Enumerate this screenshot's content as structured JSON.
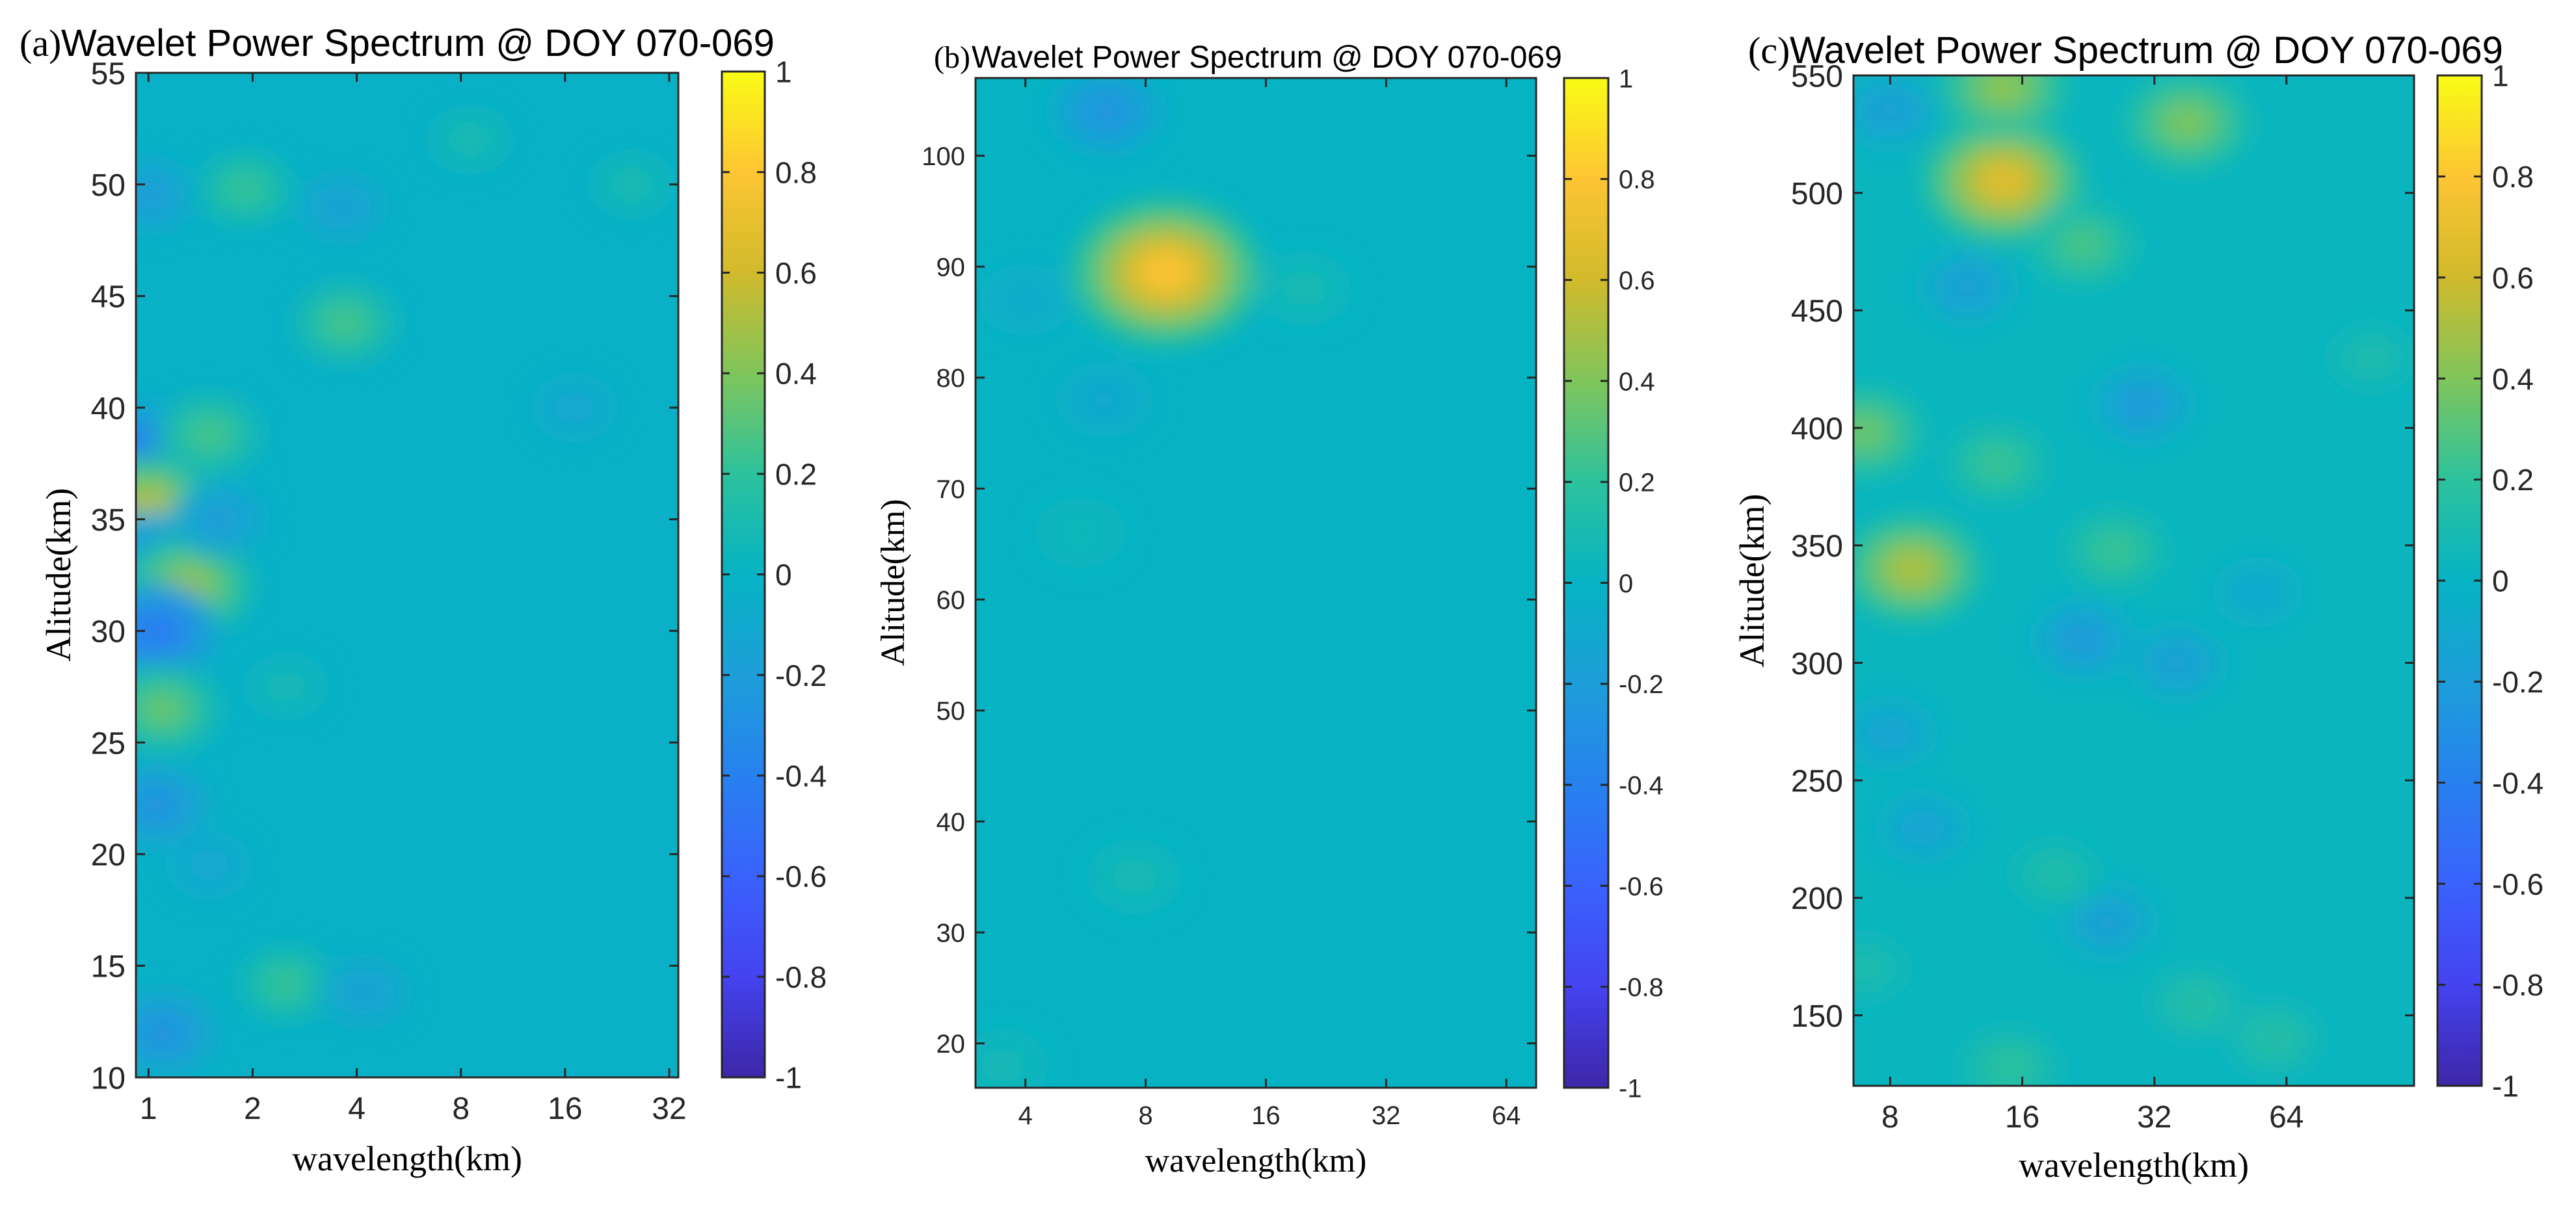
{
  "chart_data": [
    {
      "type": "heatmap",
      "panel_label": "(a)",
      "title": "Wavelet Power Spectrum @ DOY 070-069",
      "xlabel": "wavelength(km)",
      "ylabel": "Alitude(km)",
      "xscale": "log2",
      "xlim": [
        0.92,
        34
      ],
      "ylim": [
        10,
        55
      ],
      "xticks": [
        1,
        2,
        4,
        8,
        16,
        32
      ],
      "yticks": [
        10,
        15,
        20,
        25,
        30,
        35,
        40,
        45,
        50,
        55
      ],
      "colorbar": {
        "colormap": "parula",
        "range": [
          -1,
          1
        ],
        "ticks": [
          1,
          0.8,
          0.6,
          0.4,
          0.2,
          0,
          -0.2,
          -0.4,
          -0.6,
          -0.8,
          -1
        ]
      },
      "background_value": -0.03,
      "features": [
        {
          "x": 1.0,
          "y": 38.0,
          "value": -0.55
        },
        {
          "x": 1.0,
          "y": 35.5,
          "value": 0.7
        },
        {
          "x": 1.0,
          "y": 33.6,
          "value": -0.3
        },
        {
          "x": 1.3,
          "y": 32.0,
          "value": 0.6
        },
        {
          "x": 1.05,
          "y": 30.0,
          "value": -0.55
        },
        {
          "x": 1.1,
          "y": 26.5,
          "value": 0.45
        },
        {
          "x": 1.05,
          "y": 22.2,
          "value": -0.35
        },
        {
          "x": 1.1,
          "y": 12.0,
          "value": -0.35
        },
        {
          "x": 1.5,
          "y": 38.8,
          "value": 0.35
        },
        {
          "x": 1.6,
          "y": 35.0,
          "value": -0.25
        },
        {
          "x": 1.0,
          "y": 49.5,
          "value": -0.25
        },
        {
          "x": 1.9,
          "y": 49.8,
          "value": 0.3
        },
        {
          "x": 3.7,
          "y": 43.8,
          "value": 0.35
        },
        {
          "x": 3.6,
          "y": 49.0,
          "value": -0.2
        },
        {
          "x": 2.5,
          "y": 14.2,
          "value": 0.3
        },
        {
          "x": 4.2,
          "y": 13.8,
          "value": -0.2
        },
        {
          "x": 2.5,
          "y": 27.5,
          "value": 0.12
        },
        {
          "x": 1.5,
          "y": 19.5,
          "value": -0.15
        },
        {
          "x": 8.5,
          "y": 52.0,
          "value": 0.15
        },
        {
          "x": 25,
          "y": 50.0,
          "value": 0.15
        },
        {
          "x": 17,
          "y": 40.0,
          "value": -0.15
        }
      ]
    },
    {
      "type": "heatmap",
      "panel_label": "(b)",
      "title": "Wavelet Power Spectrum @ DOY 070-069",
      "xlabel": "wavelength(km)",
      "ylabel": "Alitude(km)",
      "xscale": "log2",
      "xlim": [
        3.0,
        76
      ],
      "ylim": [
        16,
        107
      ],
      "xticks": [
        4,
        8,
        16,
        32,
        64
      ],
      "yticks": [
        20,
        30,
        40,
        50,
        60,
        70,
        80,
        90,
        100
      ],
      "colorbar": {
        "colormap": "parula",
        "range": [
          -1,
          1
        ],
        "ticks": [
          1,
          0.8,
          0.6,
          0.4,
          0.2,
          0,
          -0.2,
          -0.4,
          -0.6,
          -0.8,
          -1
        ]
      },
      "background_value": 0.0,
      "features": [
        {
          "x": 9.0,
          "y": 89.5,
          "value": 1.0
        },
        {
          "x": 6.4,
          "y": 104.0,
          "value": -0.35
        },
        {
          "x": 20.0,
          "y": 88.0,
          "value": 0.12
        },
        {
          "x": 7.5,
          "y": 35.0,
          "value": 0.12
        },
        {
          "x": 3.5,
          "y": 18.0,
          "value": 0.1
        },
        {
          "x": 6.3,
          "y": 78.0,
          "value": -0.15
        },
        {
          "x": 4.0,
          "y": 87.0,
          "value": -0.1
        },
        {
          "x": 5.5,
          "y": 66.0,
          "value": 0.08
        }
      ]
    },
    {
      "type": "heatmap",
      "panel_label": "(c)",
      "title": "Wavelet Power Spectrum @ DOY 070-069",
      "xlabel": "wavelength(km)",
      "ylabel": "Alitude(km)",
      "xscale": "log2",
      "xlim": [
        6.6,
        125
      ],
      "ylim": [
        120,
        550
      ],
      "xticks": [
        8,
        16,
        32,
        64
      ],
      "yticks": [
        150,
        200,
        250,
        300,
        350,
        400,
        450,
        500,
        550
      ],
      "colorbar": {
        "colormap": "parula",
        "range": [
          -1,
          1
        ],
        "ticks": [
          1,
          0.8,
          0.6,
          0.4,
          0.2,
          0,
          -0.2,
          -0.4,
          -0.6,
          -0.8,
          -1
        ]
      },
      "background_value": 0.02,
      "features": [
        {
          "x": 14.5,
          "y": 505.0,
          "value": 0.85
        },
        {
          "x": 14.5,
          "y": 545.0,
          "value": 0.55
        },
        {
          "x": 38.0,
          "y": 530.0,
          "value": 0.5
        },
        {
          "x": 9.0,
          "y": 340.0,
          "value": 0.65
        },
        {
          "x": 7.0,
          "y": 398.0,
          "value": 0.45
        },
        {
          "x": 22.0,
          "y": 478.0,
          "value": 0.35
        },
        {
          "x": 14.0,
          "y": 385.0,
          "value": 0.3
        },
        {
          "x": 26.0,
          "y": 348.0,
          "value": 0.3
        },
        {
          "x": 8.0,
          "y": 535.0,
          "value": -0.25
        },
        {
          "x": 12.0,
          "y": 460.0,
          "value": -0.25
        },
        {
          "x": 30.0,
          "y": 410.0,
          "value": -0.3
        },
        {
          "x": 22.0,
          "y": 310.0,
          "value": -0.3
        },
        {
          "x": 36.0,
          "y": 300.0,
          "value": -0.25
        },
        {
          "x": 25.0,
          "y": 190.0,
          "value": -0.25
        },
        {
          "x": 9.5,
          "y": 230.0,
          "value": -0.2
        },
        {
          "x": 55.0,
          "y": 330.0,
          "value": -0.15
        },
        {
          "x": 40.0,
          "y": 155.0,
          "value": 0.2
        },
        {
          "x": 15.0,
          "y": 128.0,
          "value": 0.25
        },
        {
          "x": 60.0,
          "y": 140.0,
          "value": 0.2
        },
        {
          "x": 8.0,
          "y": 270.0,
          "value": -0.2
        },
        {
          "x": 19.0,
          "y": 210.0,
          "value": 0.18
        },
        {
          "x": 100.0,
          "y": 430.0,
          "value": 0.15
        },
        {
          "x": 7.0,
          "y": 170.0,
          "value": 0.15
        }
      ]
    }
  ]
}
